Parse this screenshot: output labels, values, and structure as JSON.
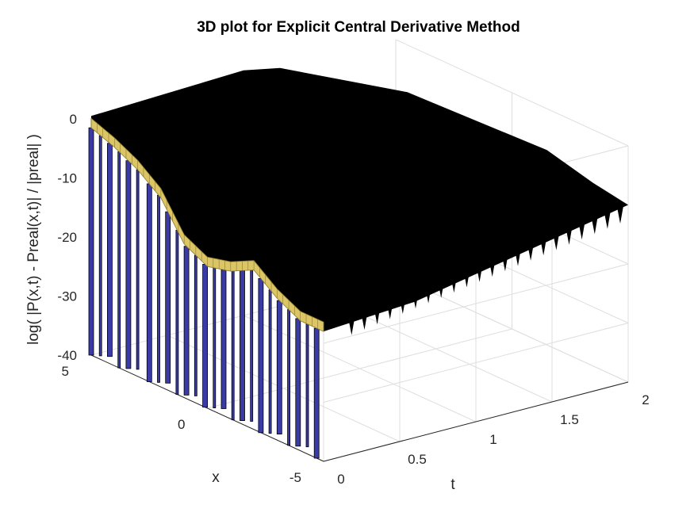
{
  "chart_data": {
    "type": "surface3d",
    "title": "3D plot for Explicit Central Derivative Method",
    "xlabel": "t",
    "ylabel": "x",
    "zlabel": "log( |P(x,t) - Preal(x,t)| / |preal| )",
    "x_range": [
      0,
      2
    ],
    "y_range": [
      -5,
      5
    ],
    "z_range": [
      -40,
      0
    ],
    "x_ticks": [
      "0",
      "0.5",
      "1",
      "1.5",
      "2"
    ],
    "x_tick_values": [
      0,
      0.5,
      1,
      1.5,
      2
    ],
    "y_ticks": [
      "5",
      "0",
      "-5"
    ],
    "y_tick_values": [
      5,
      0,
      -5
    ],
    "z_ticks": [
      "0",
      "-10",
      "-20",
      "-30",
      "-40"
    ],
    "z_tick_values": [
      0,
      -10,
      -20,
      -30,
      -40
    ],
    "grid": true,
    "colors": {
      "surface": "#000000",
      "edge_band": "#e8d06a",
      "edge_band_dark": "#8a7a30",
      "spike": "#3b3ba6",
      "grid": "#dedede",
      "axis": "#262626"
    },
    "edge_profile_t0": {
      "x": [
        5,
        4,
        3,
        2,
        1,
        0,
        -1,
        -2,
        -3,
        -4,
        -5
      ],
      "z": [
        -1.5,
        -3,
        -5,
        -8,
        -14,
        -16,
        -15,
        -13,
        -16,
        -18,
        -18
      ]
    },
    "spikes_t0": {
      "x": [
        5,
        4.6,
        4.2,
        3.8,
        3.4,
        3.0,
        2.5,
        2.1,
        1.7,
        1.3,
        0.9,
        0.5,
        0.1,
        -0.3,
        -0.7,
        -1.1,
        -1.5,
        -1.9,
        -2.3,
        -2.7,
        -3.1,
        -3.5,
        -3.9,
        -4.3,
        -4.7
      ],
      "z_min": -40
    }
  }
}
